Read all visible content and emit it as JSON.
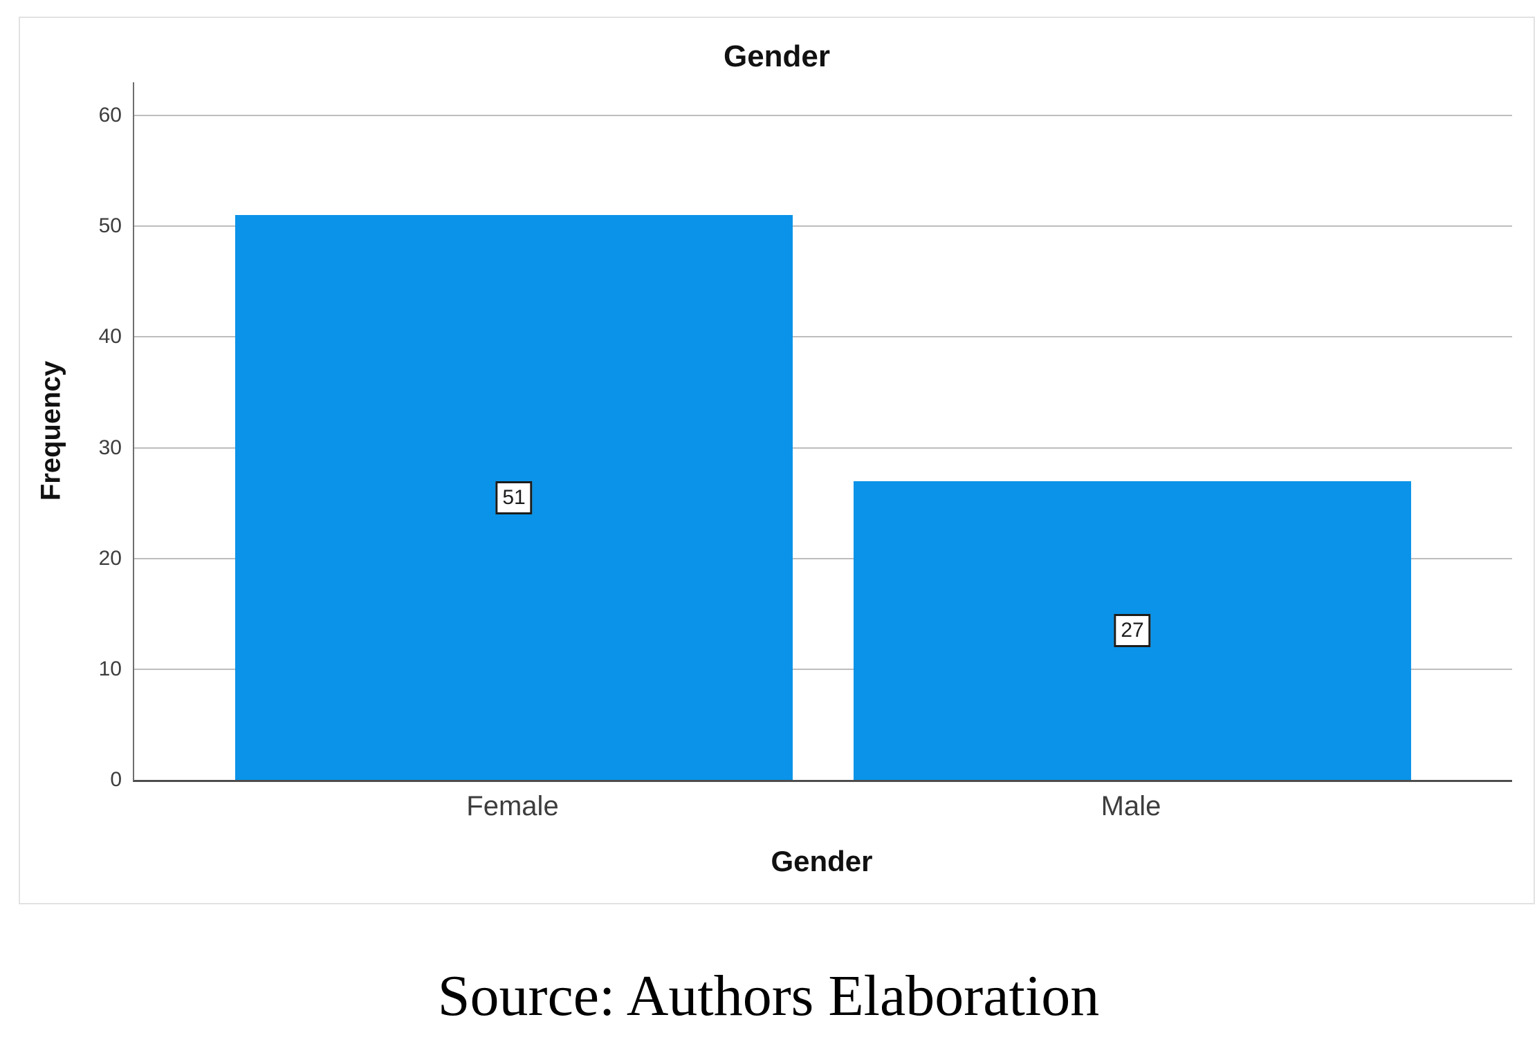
{
  "figure": {
    "source_caption": "Source: Authors Elaboration"
  },
  "chart_data": {
    "type": "bar",
    "title": "Gender",
    "categories": [
      "Female",
      "Male"
    ],
    "values": [
      51,
      27
    ],
    "xlabel": "Gender",
    "ylabel": "Frequency",
    "yticks": [
      0,
      10,
      20,
      30,
      40,
      50,
      60
    ],
    "ylim": [
      0,
      63
    ],
    "grid": true,
    "legend": false,
    "bar_value_labels": [
      "51",
      "27"
    ],
    "colors": {
      "bar": "#0A93E8",
      "grid": "#BDBDBD",
      "axis_x": "#4D4D4D",
      "axis_y": "#6E6E6E",
      "tick_text": "#3D3D3D",
      "title_text": "#111111",
      "frame_border": "#E2E2E2",
      "label_box_border": "#1C1C1C",
      "label_box_bg": "#FFFFFF"
    }
  }
}
